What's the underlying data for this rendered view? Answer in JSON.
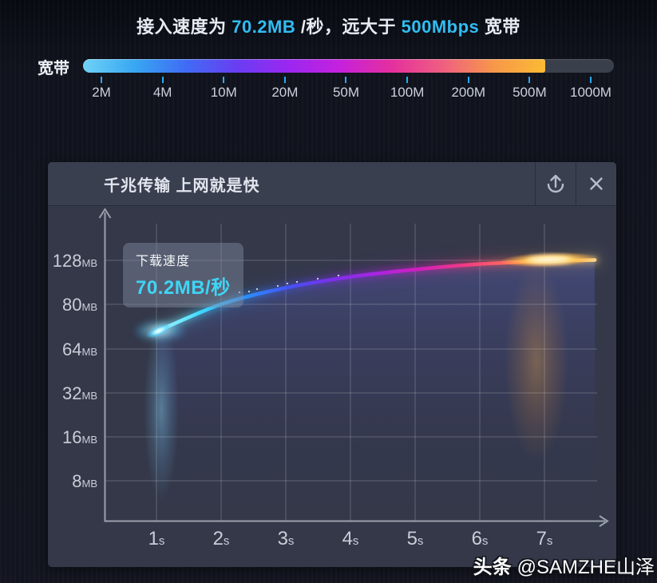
{
  "colors": {
    "accent_cyan": "#31bdf2",
    "page_bg": "#0e111a",
    "panel_bg": "#343849",
    "panel_header_bg": "#3a3f50",
    "grid_line": "rgba(255,255,255,0.22)",
    "axis": "#9aa0ac",
    "tick_blue": "#2aa9ef",
    "tooltip_value": "#3ed5f6"
  },
  "header": {
    "prefix": "接入速度为 ",
    "speed": "70.2MB",
    "mid": " /秒，远大于 ",
    "bandwidth": "500Mbps",
    "suffix": " 宽带"
  },
  "bandwidth_bar": {
    "label": "宽带",
    "fill_percent": 87,
    "ticks": [
      "2M",
      "4M",
      "10M",
      "20M",
      "50M",
      "100M",
      "200M",
      "500M",
      "1000M"
    ],
    "gradient": [
      "#6fd2f6",
      "#38a7f2",
      "#3f6cf5",
      "#6a3df2",
      "#9b27f0",
      "#c521dd",
      "#e42f9e",
      "#ef5f80",
      "#f7984a",
      "#fbbb33"
    ]
  },
  "panel": {
    "title": "千兆传输 上网就是快",
    "upload_icon": "upload",
    "close_icon": "close"
  },
  "tooltip": {
    "label": "下载速度",
    "value": "70.2MB/秒"
  },
  "chart_data": {
    "type": "line",
    "title": "千兆传输 上网就是快",
    "x": [
      1,
      2,
      3,
      4,
      5,
      6,
      7
    ],
    "x_unit": "s",
    "y_ticks": [
      8,
      16,
      32,
      64,
      80,
      128
    ],
    "y_unit": "MB",
    "y_scale": "even-spaced-ticks",
    "grid": true,
    "legend": "none",
    "series": [
      {
        "name": "下载速度",
        "values": [
          70.2,
          80,
          98,
          110,
          118,
          124,
          127
        ]
      }
    ],
    "annotation": {
      "label": "下载速度",
      "value": "70.2MB/秒",
      "anchor_x": 1,
      "anchor_y": 70.2
    },
    "line_gradient": [
      "#b5feff",
      "#3fd9ff",
      "#2b92ff",
      "#4453f3",
      "#7b2fe9",
      "#a825e2",
      "#d11fbc",
      "#ef3a83",
      "#fb6a5e",
      "#ffa845",
      "#ffd98c"
    ]
  },
  "watermark": {
    "brand": "头条",
    "handle": "@SAMZHE山泽"
  }
}
